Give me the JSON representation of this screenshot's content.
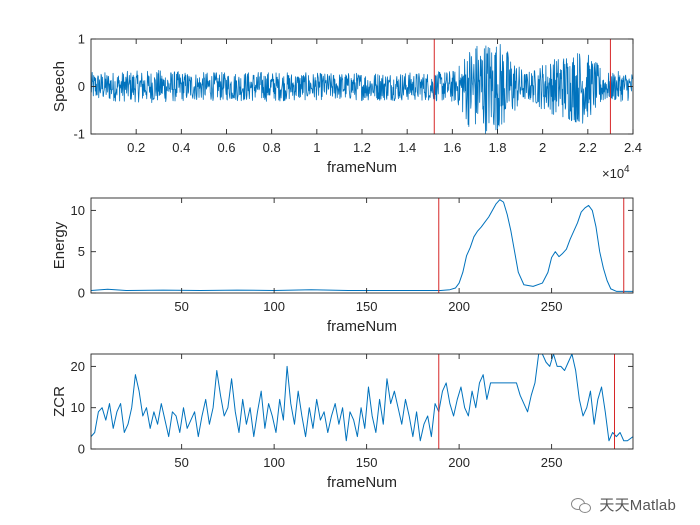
{
  "colors": {
    "signal": "#0072BD",
    "marker": "#D62728",
    "axis": "#262626"
  },
  "watermark": {
    "text": "天天Matlab",
    "icon": "wechat-icon"
  },
  "chart_data": [
    {
      "type": "line",
      "ylabel": "Speech",
      "xlabel": "frameNum",
      "xlim": [
        0,
        24000
      ],
      "ylim": [
        -1,
        1
      ],
      "xticks": [
        2000,
        4000,
        6000,
        8000,
        10000,
        12000,
        14000,
        16000,
        18000,
        20000,
        22000,
        24000
      ],
      "xtick_labels": [
        "0.2",
        "0.4",
        "0.6",
        "0.8",
        "1",
        "1.2",
        "1.4",
        "1.6",
        "1.8",
        "2",
        "2.2",
        "2.4"
      ],
      "yticks": [
        -1,
        0,
        1
      ],
      "ytick_labels": [
        "-1",
        "0",
        "1"
      ],
      "x_exponent_label": "×10",
      "x_exponent_power": "4",
      "markers": [
        15200,
        23000
      ],
      "envelope": {
        "x": [
          0,
          1500,
          3000,
          4500,
          6000,
          7500,
          9000,
          10500,
          12000,
          13500,
          15000,
          15500,
          16200,
          16700,
          17200,
          17700,
          18200,
          18700,
          19200,
          19600,
          20000,
          20600,
          21200,
          21800,
          22300,
          22800,
          23300,
          24000
        ],
        "amp": [
          0.3,
          0.32,
          0.35,
          0.3,
          0.3,
          0.32,
          0.3,
          0.28,
          0.3,
          0.3,
          0.3,
          0.32,
          0.35,
          0.85,
          0.98,
          1.0,
          0.95,
          0.6,
          0.3,
          0.35,
          0.5,
          0.62,
          0.75,
          0.8,
          0.55,
          0.3,
          0.32,
          0.3
        ]
      }
    },
    {
      "type": "line",
      "ylabel": "Energy",
      "xlabel": "frameNum",
      "xlim": [
        1,
        294
      ],
      "ylim": [
        0,
        11.5
      ],
      "xticks": [
        50,
        100,
        150,
        200,
        250
      ],
      "xtick_labels": [
        "50",
        "100",
        "150",
        "200",
        "250"
      ],
      "yticks": [
        0,
        5,
        10
      ],
      "ytick_labels": [
        "0",
        "5",
        "10"
      ],
      "markers": [
        189,
        289
      ],
      "x": [
        1,
        10,
        20,
        40,
        60,
        80,
        100,
        120,
        140,
        160,
        180,
        190,
        195,
        198,
        200,
        202,
        204,
        206,
        208,
        210,
        212,
        214,
        216,
        218,
        220,
        222,
        224,
        226,
        228,
        230,
        232,
        235,
        240,
        245,
        248,
        250,
        252,
        254,
        256,
        258,
        260,
        262,
        264,
        266,
        268,
        270,
        272,
        274,
        276,
        278,
        280,
        282,
        285,
        288,
        290,
        294
      ],
      "y": [
        0.3,
        0.45,
        0.3,
        0.35,
        0.3,
        0.35,
        0.3,
        0.4,
        0.3,
        0.3,
        0.3,
        0.3,
        0.4,
        0.6,
        1.2,
        2.5,
        4.5,
        5.5,
        6.8,
        7.5,
        8.0,
        8.6,
        9.2,
        10.0,
        10.8,
        11.3,
        11.0,
        9.5,
        7.5,
        5.0,
        2.5,
        1.0,
        0.8,
        1.2,
        2.5,
        4.3,
        5.0,
        4.4,
        4.8,
        5.3,
        6.5,
        7.5,
        8.5,
        9.8,
        10.3,
        10.6,
        10.0,
        8.0,
        5.0,
        3.0,
        1.5,
        0.5,
        0.2,
        0.2,
        0.2,
        0.2
      ]
    },
    {
      "type": "line",
      "ylabel": "ZCR",
      "xlabel": "frameNum",
      "xlim": [
        1,
        294
      ],
      "ylim": [
        0,
        23
      ],
      "xticks": [
        50,
        100,
        150,
        200,
        250
      ],
      "xtick_labels": [
        "50",
        "100",
        "150",
        "200",
        "250"
      ],
      "yticks": [
        0,
        10,
        20
      ],
      "ytick_labels": [
        "0",
        "10",
        "20"
      ],
      "markers": [
        189,
        284
      ],
      "x": [
        1,
        3,
        5,
        7,
        9,
        11,
        13,
        15,
        17,
        19,
        21,
        23,
        25,
        27,
        29,
        31,
        33,
        35,
        37,
        39,
        41,
        43,
        45,
        47,
        49,
        51,
        53,
        55,
        57,
        59,
        61,
        63,
        65,
        67,
        69,
        71,
        73,
        75,
        77,
        79,
        81,
        83,
        85,
        87,
        89,
        91,
        93,
        95,
        97,
        99,
        101,
        103,
        105,
        107,
        109,
        111,
        113,
        115,
        117,
        119,
        121,
        123,
        125,
        127,
        129,
        131,
        133,
        135,
        137,
        139,
        141,
        143,
        145,
        147,
        149,
        151,
        153,
        155,
        157,
        159,
        161,
        163,
        165,
        167,
        169,
        171,
        173,
        175,
        177,
        179,
        181,
        183,
        185,
        187,
        189,
        191,
        193,
        195,
        197,
        199,
        201,
        203,
        205,
        207,
        209,
        211,
        213,
        215,
        217,
        219,
        221,
        223,
        225,
        227,
        229,
        231,
        233,
        235,
        237,
        239,
        241,
        243,
        245,
        247,
        249,
        251,
        253,
        255,
        257,
        259,
        261,
        263,
        265,
        267,
        269,
        271,
        273,
        275,
        277,
        279,
        281,
        283,
        285,
        287,
        289,
        291,
        294
      ],
      "y": [
        3,
        4,
        9,
        10,
        7,
        11,
        5,
        9,
        11,
        4,
        6,
        10,
        18,
        14,
        8,
        10,
        5,
        9,
        6,
        11,
        7,
        3,
        9,
        8,
        4,
        10,
        5,
        7,
        9,
        3,
        8,
        12,
        6,
        10,
        19,
        13,
        8,
        10,
        17,
        9,
        4,
        12,
        6,
        10,
        3,
        9,
        14,
        5,
        11,
        8,
        4,
        12,
        7,
        20,
        11,
        6,
        14,
        8,
        3,
        10,
        5,
        12,
        7,
        9,
        4,
        8,
        11,
        6,
        10,
        2,
        9,
        7,
        3,
        10,
        5,
        15,
        8,
        4,
        12,
        6,
        17,
        11,
        14,
        10,
        6,
        12,
        8,
        3,
        9,
        2,
        6,
        8,
        3,
        11,
        9,
        14,
        16,
        11,
        8,
        12,
        15,
        10,
        8,
        14,
        10,
        16,
        18,
        12,
        16,
        16,
        16,
        16,
        16,
        16,
        16,
        16,
        13,
        11,
        9,
        13,
        16,
        23,
        23,
        21,
        20,
        23,
        20,
        20,
        19,
        21,
        23,
        19,
        12,
        8,
        10,
        14,
        6,
        12,
        15,
        9,
        2,
        4,
        3,
        4,
        2,
        2,
        3
      ]
    }
  ]
}
